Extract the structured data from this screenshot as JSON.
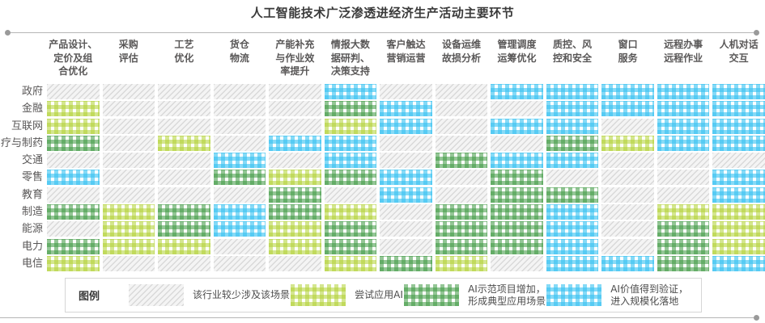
{
  "title": "人工智能技术广泛渗透进经济生产活动主要环节",
  "legend": {
    "label": "图例",
    "items": [
      {
        "code": 0,
        "name": "rarely-involved",
        "label": "该行业较少涉及该场景",
        "color": "#d9d9d9",
        "pattern": "diagonal-hatch"
      },
      {
        "code": 1,
        "name": "trial-ai",
        "label": "尝试应用AI",
        "color": "#b1d133",
        "pattern": "gingham"
      },
      {
        "code": 2,
        "name": "demo-projects",
        "label": "AI示范项目增加，\n形成典型应用场景",
        "color": "#3c9840",
        "pattern": "gingham"
      },
      {
        "code": 3,
        "name": "scaled-adoption",
        "label": "AI价值得到验证，\n进入规模化落地",
        "color": "#36c1f1",
        "pattern": "gingham"
      }
    ]
  },
  "colors": {
    "text": "#595757",
    "divider": "#b6b6b6",
    "title": "#3a3a3a",
    "gray_hatch": "#d9d9d9",
    "light_green": "#b1d133",
    "dark_green": "#3c9840",
    "blue": "#36c1f1"
  },
  "chart_data": {
    "type": "heatmap",
    "title": "人工智能技术广泛渗透进经济生产活动主要环节",
    "columns": [
      "产品设计、\n定价及组\n合优化",
      "采购\n评估",
      "工艺\n优化",
      "货仓\n物流",
      "产能补充\n与作业效\n率提升",
      "情报大数\n据研判、\n决策支持",
      "客户触达\n营销运营",
      "设备运维\n故损分析",
      "管理调度\n运筹优化",
      "质控、风\n控和安全",
      "窗口\n服务",
      "远程办事\n远程作业",
      "人机对话\n交互"
    ],
    "rows": [
      "政府",
      "金融",
      "互联网",
      "疗与制药",
      "交通",
      "零售",
      "教育",
      "制造",
      "能源",
      "电力",
      "电信"
    ],
    "level_labels": {
      "0": "该行业较少涉及该场景",
      "1": "尝试应用AI",
      "2": "AI示范项目增加，形成典型应用场景",
      "3": "AI价值得到验证，进入规模化落地"
    },
    "matrix": [
      [
        0,
        0,
        0,
        0,
        0,
        3,
        0,
        0,
        3,
        3,
        3,
        3,
        3
      ],
      [
        1,
        0,
        0,
        0,
        0,
        2,
        3,
        0,
        0,
        3,
        3,
        3,
        3
      ],
      [
        1,
        0,
        0,
        0,
        0,
        1,
        3,
        0,
        3,
        3,
        0,
        3,
        3
      ],
      [
        2,
        0,
        1,
        0,
        3,
        3,
        0,
        0,
        0,
        2,
        1,
        3,
        3
      ],
      [
        0,
        0,
        0,
        3,
        0,
        3,
        0,
        2,
        3,
        3,
        0,
        0,
        0
      ],
      [
        3,
        0,
        0,
        2,
        1,
        2,
        3,
        0,
        2,
        0,
        0,
        0,
        3
      ],
      [
        0,
        0,
        0,
        0,
        2,
        0,
        3,
        0,
        2,
        2,
        0,
        0,
        3
      ],
      [
        2,
        1,
        2,
        3,
        2,
        1,
        0,
        2,
        2,
        3,
        0,
        1,
        1
      ],
      [
        0,
        1,
        2,
        3,
        1,
        2,
        0,
        2,
        2,
        3,
        0,
        2,
        1
      ],
      [
        2,
        1,
        1,
        0,
        1,
        2,
        0,
        2,
        2,
        3,
        0,
        2,
        1
      ],
      [
        1,
        0,
        0,
        0,
        0,
        1,
        2,
        1,
        0,
        3,
        3,
        2,
        3
      ]
    ],
    "legend_position": "bottom",
    "grid": false
  }
}
